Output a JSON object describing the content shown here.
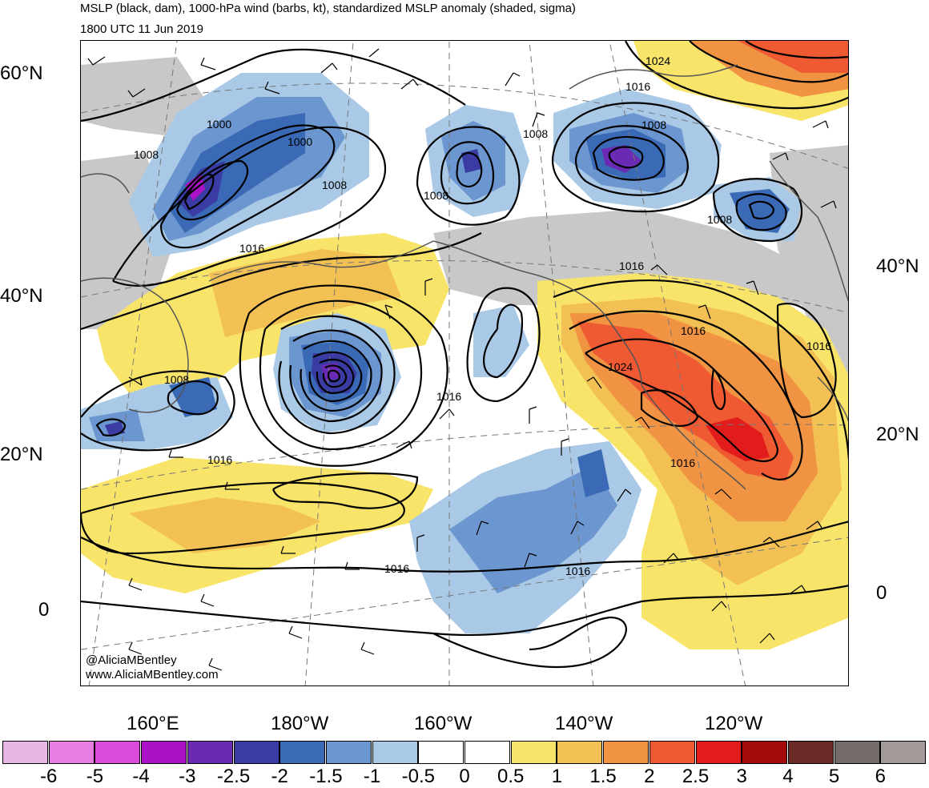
{
  "title": {
    "line1": "MSLP (black, dam), 1000-hPa wind (barbs, kt), standardized MSLP anomaly (shaded, sigma)",
    "line2": "1800 UTC 11 Jun 2019"
  },
  "credits": {
    "twitter": "@AliciaMBentley",
    "website": "www.AliciaMBentley.com"
  },
  "latitude_labels": {
    "left": [
      "60°N",
      "40°N",
      "20°N",
      "0"
    ],
    "right": [
      "40°N",
      "20°N",
      "0"
    ]
  },
  "longitude_labels": [
    "160°E",
    "180°W",
    "160°W",
    "140°W",
    "120°W"
  ],
  "colorbar": {
    "colors": [
      "#e9b7e6",
      "#e77ee4",
      "#d94bd8",
      "#aa12c7",
      "#6b2ab4",
      "#3a3ca3",
      "#3a6ab5",
      "#6b96cf",
      "#a9c9e6",
      "#ffffff",
      "#ffffff",
      "#f9e46a",
      "#f3c153",
      "#f09443",
      "#f05a32",
      "#e21b1b",
      "#a20b0b",
      "#6a2b27",
      "#736a6a",
      "#a39a9a"
    ],
    "labels": [
      "-6",
      "-5",
      "-4",
      "-3",
      "-2.5",
      "-2",
      "-1.5",
      "-1",
      "-0.5",
      "0",
      "0.5",
      "1",
      "1.5",
      "2",
      "2.5",
      "3",
      "4",
      "5",
      "6"
    ]
  },
  "isobar_labels": [
    {
      "text": "1024"
    },
    {
      "text": "1016"
    },
    {
      "text": "1008"
    },
    {
      "text": "1008"
    },
    {
      "text": "1000"
    },
    {
      "text": "1000"
    },
    {
      "text": "1008"
    },
    {
      "text": "1008"
    },
    {
      "text": "1008"
    },
    {
      "text": "1008"
    },
    {
      "text": "1016"
    },
    {
      "text": "1016"
    },
    {
      "text": "1016"
    },
    {
      "text": "1016"
    },
    {
      "text": "1024"
    },
    {
      "text": "1016"
    },
    {
      "text": "1016"
    },
    {
      "text": "1008"
    },
    {
      "text": "1016"
    },
    {
      "text": "1016"
    },
    {
      "text": "1016"
    }
  ]
}
